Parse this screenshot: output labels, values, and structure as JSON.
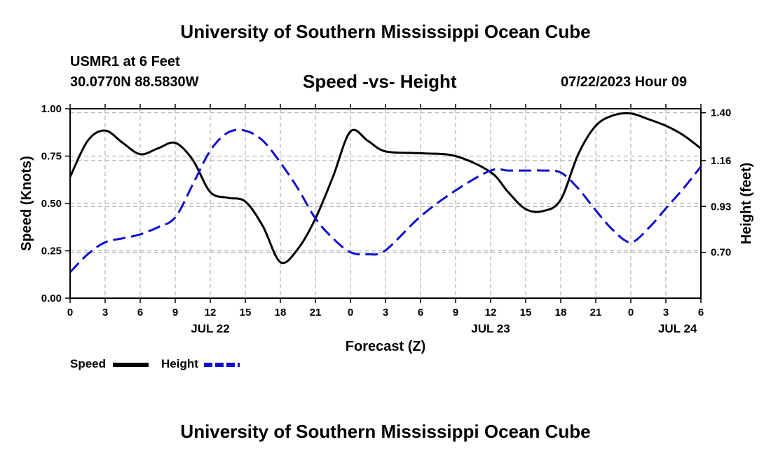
{
  "page": {
    "main_title": "University of Southern Mississippi Ocean Cube",
    "footer_title": "University of Southern Mississippi Ocean Cube",
    "station": "USMR1 at 6 Feet",
    "coords": "30.0770N  88.5830W",
    "subtitle": "Speed -vs- Height",
    "datetime": "07/22/2023 Hour 09"
  },
  "legend": {
    "speed_label": "Speed",
    "height_label": "Height"
  },
  "colors": {
    "speed": "#000000",
    "height": "#1010cc",
    "grid": "#b4b4b4"
  },
  "chart_data": {
    "type": "line",
    "title": "Speed -vs- Height",
    "xlabel": "Forecast (Z)",
    "ylabel": "Speed (Knots)",
    "ylabel_right": "Height (feet)",
    "x_range_hours": [
      0,
      54
    ],
    "x_ticks": [
      0,
      3,
      6,
      9,
      12,
      15,
      18,
      21,
      24,
      27,
      30,
      33,
      36,
      39,
      42,
      45,
      48,
      51,
      54
    ],
    "x_tick_labels": [
      "0",
      "3",
      "6",
      "9",
      "12",
      "15",
      "18",
      "21",
      "0",
      "3",
      "6",
      "9",
      "12",
      "15",
      "18",
      "21",
      "0",
      "3",
      "6"
    ],
    "day_labels": [
      {
        "x": 12,
        "label": "JUL 22"
      },
      {
        "x": 36,
        "label": "JUL 23"
      },
      {
        "x": 52,
        "label": "JUL 24"
      }
    ],
    "ylim_left": [
      0,
      1
    ],
    "y_ticks_left": [
      0,
      0.25,
      0.5,
      0.75,
      1.0
    ],
    "y_tick_labels_left": [
      "0.00",
      "0.25",
      "0.50",
      "0.75",
      "1.00"
    ],
    "ylim_right": [
      0.47,
      1.42
    ],
    "y_ticks_right": [
      0.7,
      0.93,
      1.16,
      1.4
    ],
    "y_tick_labels_right": [
      "0.70",
      "0.93",
      "1.16",
      "1.40"
    ],
    "series": [
      {
        "name": "Speed",
        "axis": "left",
        "style": "solid",
        "x": [
          0,
          1.5,
          3,
          4.5,
          6,
          7.5,
          9,
          10.5,
          12,
          13.5,
          15,
          16.5,
          18,
          19.5,
          21,
          22.5,
          24,
          25.5,
          27,
          30,
          33,
          36,
          37.5,
          39,
          40.5,
          42,
          43.5,
          45,
          46.5,
          48,
          49.5,
          51,
          52.5,
          54
        ],
        "values": [
          0.64,
          0.83,
          0.885,
          0.82,
          0.76,
          0.79,
          0.82,
          0.73,
          0.56,
          0.53,
          0.51,
          0.38,
          0.19,
          0.26,
          0.42,
          0.64,
          0.88,
          0.83,
          0.775,
          0.765,
          0.75,
          0.665,
          0.56,
          0.47,
          0.46,
          0.52,
          0.76,
          0.91,
          0.965,
          0.975,
          0.945,
          0.91,
          0.86,
          0.79
        ]
      },
      {
        "name": "Height",
        "axis": "right",
        "style": "dashed",
        "x": [
          0,
          1.5,
          3,
          4.5,
          6,
          7.5,
          9,
          10.5,
          12,
          13.5,
          15,
          16.5,
          18,
          19.5,
          21,
          22.5,
          24,
          25.5,
          27,
          30,
          33,
          36,
          37.5,
          39,
          40.5,
          42,
          43.5,
          45,
          46.5,
          48,
          49.5,
          51,
          52.5,
          54
        ],
        "values": [
          0.6,
          0.69,
          0.75,
          0.77,
          0.79,
          0.825,
          0.875,
          1.04,
          1.21,
          1.3,
          1.31,
          1.26,
          1.15,
          1.02,
          0.87,
          0.77,
          0.7,
          0.69,
          0.71,
          0.88,
          1.01,
          1.11,
          1.11,
          1.11,
          1.11,
          1.1,
          1.02,
          0.91,
          0.81,
          0.75,
          0.82,
          0.92,
          1.02,
          1.13
        ]
      }
    ]
  }
}
